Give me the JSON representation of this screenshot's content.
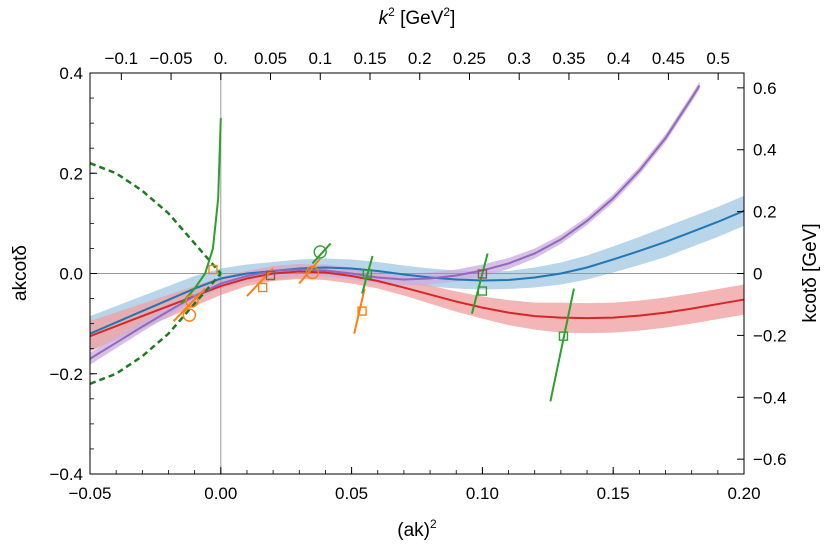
{
  "chart_data": {
    "type": "line",
    "title": "",
    "xlabel": "(ak)",
    "xlabel_sup": "2",
    "ylabel": "akcotδ",
    "x2label_k": "k",
    "x2label_sup": "2",
    "x2label_unit": " [GeV",
    "x2label_unit_sup": "2",
    "x2label_close": "]",
    "y2label": "kcotδ [GeV]",
    "xlim": [
      -0.05,
      0.2
    ],
    "ylim": [
      -0.4,
      0.4
    ],
    "x_ticks": [
      {
        "value": -0.05,
        "label": "−0.05"
      },
      {
        "value": 0.0,
        "label": "0.00"
      },
      {
        "value": 0.05,
        "label": "0.05"
      },
      {
        "value": 0.1,
        "label": "0.10"
      },
      {
        "value": 0.15,
        "label": "0.15"
      },
      {
        "value": 0.2,
        "label": "0.20"
      }
    ],
    "y_ticks": [
      {
        "value": -0.4,
        "label": "−0.4"
      },
      {
        "value": -0.2,
        "label": "−0.2"
      },
      {
        "value": 0.0,
        "label": "0.0"
      },
      {
        "value": 0.2,
        "label": "0.2"
      },
      {
        "value": 0.4,
        "label": "0.4"
      }
    ],
    "top_ticks": [
      {
        "value": -0.1,
        "label": "−0.1"
      },
      {
        "value": -0.05,
        "label": "−0.05"
      },
      {
        "value": 0.0,
        "label": "0."
      },
      {
        "value": 0.05,
        "label": "0.05"
      },
      {
        "value": 0.1,
        "label": "0.1"
      },
      {
        "value": 0.15,
        "label": "0.15"
      },
      {
        "value": 0.2,
        "label": "0.2"
      },
      {
        "value": 0.25,
        "label": "0.25"
      },
      {
        "value": 0.3,
        "label": "0.3"
      },
      {
        "value": 0.35,
        "label": "0.35"
      },
      {
        "value": 0.4,
        "label": "0.4"
      },
      {
        "value": 0.45,
        "label": "0.45"
      },
      {
        "value": 0.5,
        "label": "0.5"
      }
    ],
    "right_ticks": [
      {
        "value": 0.6,
        "label": "0.6"
      },
      {
        "value": 0.4,
        "label": "0.4"
      },
      {
        "value": 0.2,
        "label": "0.2"
      },
      {
        "value": 0.0,
        "label": "0"
      },
      {
        "value": -0.2,
        "label": "−0.2"
      },
      {
        "value": -0.4,
        "label": "−0.4"
      },
      {
        "value": -0.6,
        "label": "−0.6"
      }
    ],
    "top_axis_k2_per_x": 2.63,
    "right_axis_kcot_per_y": 1.62,
    "series": [
      {
        "name": "blue fit",
        "color": "#1f77b4",
        "band_color": "#a6cbe5",
        "x": [
          -0.05,
          -0.03,
          -0.01,
          0.0,
          0.01,
          0.02,
          0.03,
          0.04,
          0.05,
          0.06,
          0.07,
          0.08,
          0.09,
          0.1,
          0.11,
          0.12,
          0.13,
          0.14,
          0.15,
          0.16,
          0.17,
          0.18,
          0.19,
          0.2
        ],
        "y": [
          -0.12,
          -0.075,
          -0.03,
          -0.01,
          0.0,
          0.005,
          0.01,
          0.012,
          0.01,
          0.005,
          -0.002,
          -0.008,
          -0.012,
          -0.014,
          -0.013,
          -0.008,
          0.0,
          0.012,
          0.028,
          0.045,
          0.063,
          0.083,
          0.103,
          0.125
        ],
        "band": [
          0.035,
          0.03,
          0.025,
          0.02,
          0.018,
          0.018,
          0.018,
          0.018,
          0.018,
          0.018,
          0.018,
          0.018,
          0.018,
          0.018,
          0.018,
          0.02,
          0.022,
          0.024,
          0.026,
          0.028,
          0.03,
          0.03,
          0.03,
          0.03
        ]
      },
      {
        "name": "red fit",
        "color": "#d62728",
        "band_color": "#f0a3a4",
        "x": [
          -0.05,
          -0.03,
          -0.01,
          0.0,
          0.01,
          0.02,
          0.03,
          0.04,
          0.05,
          0.06,
          0.07,
          0.08,
          0.09,
          0.1,
          0.11,
          0.12,
          0.13,
          0.14,
          0.15,
          0.16,
          0.17,
          0.18,
          0.19,
          0.2
        ],
        "y": [
          -0.125,
          -0.085,
          -0.045,
          -0.025,
          -0.01,
          0.0,
          0.004,
          0.002,
          -0.005,
          -0.015,
          -0.028,
          -0.042,
          -0.056,
          -0.068,
          -0.078,
          -0.085,
          -0.088,
          -0.089,
          -0.088,
          -0.084,
          -0.078,
          -0.07,
          -0.061,
          -0.052
        ],
        "band": [
          0.03,
          0.025,
          0.02,
          0.018,
          0.015,
          0.015,
          0.015,
          0.015,
          0.015,
          0.015,
          0.016,
          0.018,
          0.02,
          0.022,
          0.025,
          0.027,
          0.03,
          0.03,
          0.03,
          0.03,
          0.03,
          0.03,
          0.03,
          0.03
        ]
      },
      {
        "name": "purple fit",
        "color": "#9467bd",
        "band_color": "#c9b2df",
        "x": [
          -0.05,
          -0.04,
          -0.03,
          -0.02,
          -0.01,
          0.0,
          0.01,
          0.02,
          0.03,
          0.04,
          0.05,
          0.06,
          0.07,
          0.08,
          0.09,
          0.1,
          0.11,
          0.12,
          0.13,
          0.14,
          0.15,
          0.16,
          0.17,
          0.18,
          0.183
        ],
        "y": [
          -0.17,
          -0.138,
          -0.106,
          -0.075,
          -0.045,
          -0.02,
          -0.005,
          0.005,
          0.008,
          0.006,
          0.0,
          -0.008,
          -0.012,
          -0.01,
          -0.004,
          0.006,
          0.02,
          0.04,
          0.068,
          0.105,
          0.15,
          0.205,
          0.27,
          0.35,
          0.375
        ],
        "band": [
          0.012,
          0.011,
          0.01,
          0.01,
          0.009,
          0.008,
          0.008,
          0.008,
          0.01,
          0.012,
          0.012,
          0.012,
          0.012,
          0.012,
          0.012,
          0.012,
          0.011,
          0.01,
          0.009,
          0.008,
          0.008,
          0.008,
          0.008,
          0.008,
          0.008
        ]
      }
    ],
    "dashed_curves": {
      "color": "#1f7a1f",
      "upper_y": [
        0.22,
        0.2,
        0.165,
        0.12,
        0.06,
        0.0
      ],
      "lower_y": [
        -0.22,
        -0.2,
        -0.165,
        -0.12,
        -0.06,
        0.0
      ],
      "x": [
        -0.05,
        -0.04,
        -0.03,
        -0.02,
        -0.01,
        0.0
      ]
    },
    "green_pole_curve": {
      "color": "#2ca02c",
      "x": [
        -0.015,
        -0.01,
        -0.006,
        -0.003,
        -0.001,
        0.0
      ],
      "y": [
        -0.06,
        -0.03,
        0.0,
        0.05,
        0.15,
        0.31
      ]
    },
    "segments": [
      {
        "color": "#ff7f0e",
        "x1": -0.018,
        "y1": -0.095,
        "x2": -0.006,
        "y2": -0.03
      },
      {
        "color": "#ff7f0e",
        "x1": 0.01,
        "y1": -0.045,
        "x2": 0.02,
        "y2": 0.01
      },
      {
        "color": "#ff7f0e",
        "x1": 0.03,
        "y1": -0.02,
        "x2": 0.038,
        "y2": 0.03
      },
      {
        "color": "#ff7f0e",
        "x1": 0.051,
        "y1": -0.12,
        "x2": 0.055,
        "y2": -0.03
      },
      {
        "color": "#2ca02c",
        "x1": 0.035,
        "y1": 0.02,
        "x2": 0.042,
        "y2": 0.06
      },
      {
        "color": "#2ca02c",
        "x1": 0.054,
        "y1": -0.04,
        "x2": 0.058,
        "y2": 0.035
      },
      {
        "color": "#2ca02c",
        "x1": 0.096,
        "y1": -0.08,
        "x2": 0.102,
        "y2": 0.04
      },
      {
        "color": "#2ca02c",
        "x1": 0.126,
        "y1": -0.255,
        "x2": 0.135,
        "y2": -0.03
      }
    ],
    "markers": [
      {
        "shape": "square",
        "color": "#ff7f0e",
        "x": -0.003,
        "y": 0.008
      },
      {
        "shape": "square",
        "color": "#ff7f0e",
        "x": 0.016,
        "y": -0.028
      },
      {
        "shape": "square",
        "color": "#ff7f0e",
        "x": 0.054,
        "y": -0.075
      },
      {
        "shape": "square",
        "color": "#2ca02c",
        "x": 0.056,
        "y": -0.001
      },
      {
        "shape": "square",
        "color": "#2ca02c",
        "x": 0.1,
        "y": -0.035
      },
      {
        "shape": "square",
        "color": "#2ca02c",
        "x": 0.131,
        "y": -0.125
      },
      {
        "shape": "square",
        "color": "#8c564b",
        "x": 0.019,
        "y": -0.004
      },
      {
        "shape": "square",
        "color": "#8c564b",
        "x": 0.1,
        "y": -0.001
      },
      {
        "shape": "circle",
        "color": "#ff7f0e",
        "x": -0.011,
        "y": -0.055
      },
      {
        "shape": "circle",
        "color": "#ff7f0e",
        "x": -0.012,
        "y": -0.083
      },
      {
        "shape": "circle",
        "color": "#ff7f0e",
        "x": 0.035,
        "y": 0.002
      },
      {
        "shape": "circle",
        "color": "#2ca02c",
        "x": 0.038,
        "y": 0.043
      }
    ]
  }
}
